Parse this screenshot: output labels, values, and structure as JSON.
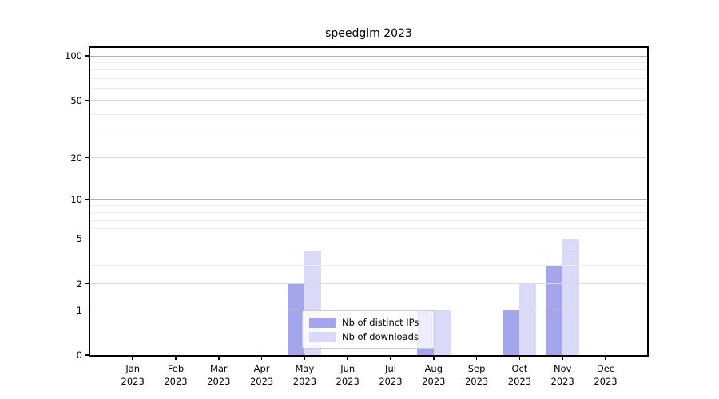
{
  "title": "speedglm 2023",
  "chart_data": {
    "type": "bar",
    "title": "speedglm 2023",
    "x_year": "2023",
    "categories": [
      "Jan",
      "Feb",
      "Mar",
      "Apr",
      "May",
      "Jun",
      "Jul",
      "Aug",
      "Sep",
      "Oct",
      "Nov",
      "Dec"
    ],
    "series": [
      {
        "name": "Nb of distinct IPs",
        "color": "#a5a5ec",
        "values": [
          0,
          0,
          0,
          0,
          2,
          0,
          0,
          1,
          0,
          1,
          3,
          0
        ]
      },
      {
        "name": "Nb of downloads",
        "color": "#dadaf8",
        "values": [
          0,
          0,
          0,
          0,
          4,
          0,
          0,
          1,
          0,
          2,
          5,
          0
        ]
      }
    ],
    "y_axis": {
      "scale": "log1p",
      "tick_labels": [
        0,
        1,
        2,
        5,
        10,
        20,
        50,
        100
      ],
      "major_gridlines": [
        1,
        10,
        100
      ],
      "mid_gridlines": [
        2,
        5,
        20,
        50
      ],
      "minor_gridlines": [
        3,
        4,
        6,
        7,
        8,
        9,
        30,
        40,
        60,
        70,
        80,
        90
      ],
      "ylim": [
        0,
        113
      ]
    },
    "legend_position": "inside-bottom-center",
    "grid": true
  },
  "colors": {
    "bar_ips": "#a5a5ec",
    "bar_downloads": "#dadaf8",
    "grid_major": "#b0b0b0",
    "grid_mid": "#d9d9d9",
    "grid_minor": "#ebebeb",
    "spine": "#000000",
    "text": "#000000",
    "legend_border": "#cccccc"
  }
}
